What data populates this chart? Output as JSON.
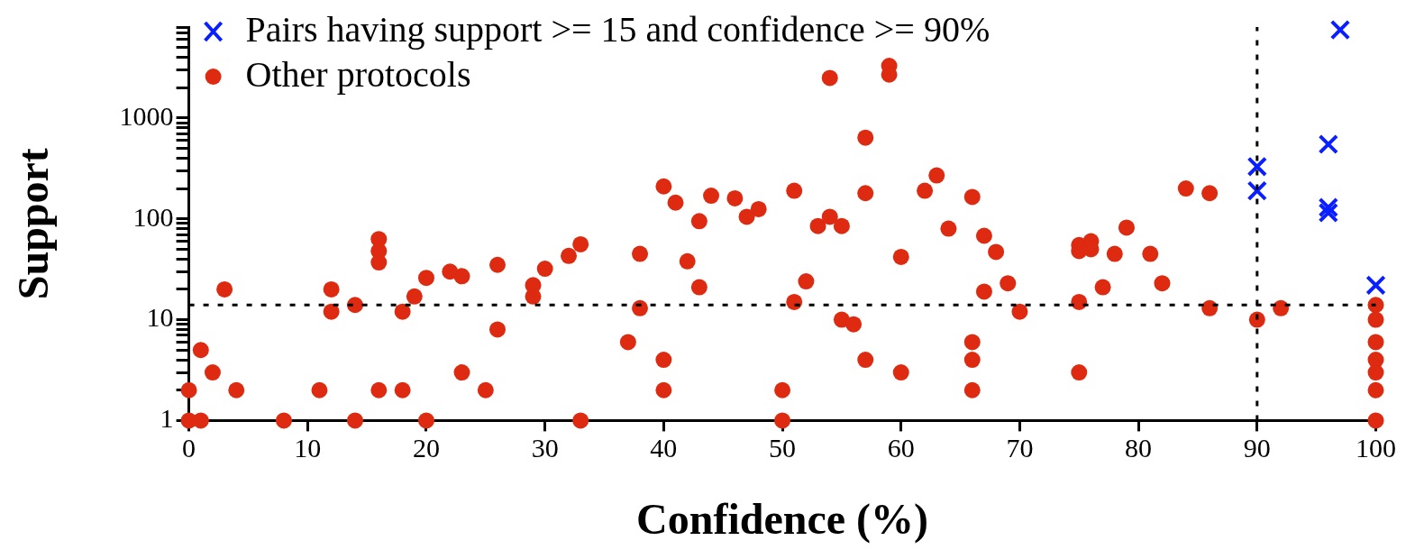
{
  "chart_data": {
    "type": "scatter",
    "xlabel": "Confidence (%)",
    "ylabel": "Support",
    "log": "y",
    "grid": false,
    "legend": "top left",
    "xlim": [
      0,
      100
    ],
    "xticks": [
      0,
      10,
      20,
      30,
      40,
      50,
      60,
      70,
      80,
      90,
      100
    ],
    "ylim": [
      1,
      8000
    ],
    "yticks": [
      1,
      {
        "value": 2,
        "label": null
      },
      {
        "value": 3,
        "label": null
      },
      {
        "value": 4,
        "label": null
      },
      {
        "value": 5,
        "label": null
      },
      {
        "value": 6,
        "label": null
      },
      {
        "value": 7,
        "label": null
      },
      {
        "value": 8,
        "label": null
      },
      {
        "value": 9,
        "label": null
      },
      10,
      {
        "value": 20,
        "label": null
      },
      {
        "value": 30,
        "label": null
      },
      {
        "value": 40,
        "label": null
      },
      {
        "value": 50,
        "label": null
      },
      {
        "value": 60,
        "label": null
      },
      {
        "value": 70,
        "label": null
      },
      {
        "value": 80,
        "label": null
      },
      {
        "value": 90,
        "label": null
      },
      100,
      {
        "value": 200,
        "label": null
      },
      {
        "value": 300,
        "label": null
      },
      {
        "value": 400,
        "label": null
      },
      {
        "value": 500,
        "label": null
      },
      {
        "value": 600,
        "label": null
      },
      {
        "value": 700,
        "label": null
      },
      {
        "value": 800,
        "label": null
      },
      {
        "value": 900,
        "label": null
      },
      1000,
      {
        "value": 2000,
        "label": null
      },
      {
        "value": 3000,
        "label": null
      },
      {
        "value": 4000,
        "label": null
      },
      {
        "value": 5000,
        "label": null
      },
      {
        "value": 6000,
        "label": null
      },
      {
        "value": 7000,
        "label": null
      },
      {
        "value": 8000,
        "label": null
      }
    ],
    "ref_lines": [
      {
        "axis": "y",
        "value": 14,
        "line_style": "dotted",
        "color": "#000000"
      },
      {
        "axis": "x",
        "value": 90,
        "line_style": "dotted",
        "color": "#000000"
      }
    ],
    "series": [
      {
        "name": "Pairs having support >= 15 and confidence >= 90%",
        "color": "#0a1fff",
        "marker": "cross",
        "x": [
          90,
          90,
          96,
          96,
          96,
          97,
          100
        ],
        "values": [
          330,
          190,
          550,
          130,
          115,
          7500,
          22
        ]
      },
      {
        "name": "Other protocols",
        "color": "#dd2a10",
        "marker": "circle",
        "x": [
          0,
          0,
          1,
          1,
          2,
          3,
          4,
          8,
          11,
          12,
          12,
          14,
          14,
          16,
          16,
          16,
          16,
          18,
          18,
          19,
          20,
          20,
          22,
          23,
          23,
          25,
          26,
          26,
          29,
          29,
          30,
          32,
          33,
          33,
          37,
          38,
          38,
          40,
          40,
          40,
          41,
          42,
          43,
          43,
          44,
          46,
          47,
          48,
          50,
          50,
          51,
          51,
          52,
          53,
          54,
          54,
          55,
          55,
          56,
          57,
          57,
          57,
          59,
          59,
          60,
          60,
          62,
          63,
          64,
          66,
          66,
          66,
          66,
          67,
          67,
          68,
          69,
          70,
          75,
          75,
          75,
          75,
          76,
          76,
          77,
          78,
          79,
          81,
          82,
          84,
          86,
          86,
          90,
          92,
          100,
          100,
          100,
          100,
          100,
          100,
          100
        ],
        "values": [
          1,
          2,
          1,
          5,
          3,
          20,
          2,
          1,
          2,
          20,
          12,
          14,
          1,
          63,
          48,
          37,
          2,
          12,
          2,
          17,
          26,
          1,
          30,
          27,
          3,
          2,
          35,
          8,
          22,
          17,
          32,
          43,
          56,
          1,
          6,
          45,
          13,
          210,
          4,
          2,
          145,
          38,
          95,
          21,
          170,
          160,
          105,
          125,
          2,
          1,
          190,
          15,
          24,
          85,
          2500,
          105,
          85,
          10,
          9,
          640,
          180,
          4,
          3300,
          2700,
          42,
          3,
          190,
          270,
          80,
          165,
          6,
          4,
          2,
          68,
          19,
          47,
          23,
          12,
          55,
          48,
          15,
          3,
          60,
          50,
          21,
          45,
          82,
          45,
          23,
          200,
          180,
          13,
          10,
          13,
          14,
          10,
          6,
          4,
          3,
          2,
          1
        ]
      }
    ]
  }
}
